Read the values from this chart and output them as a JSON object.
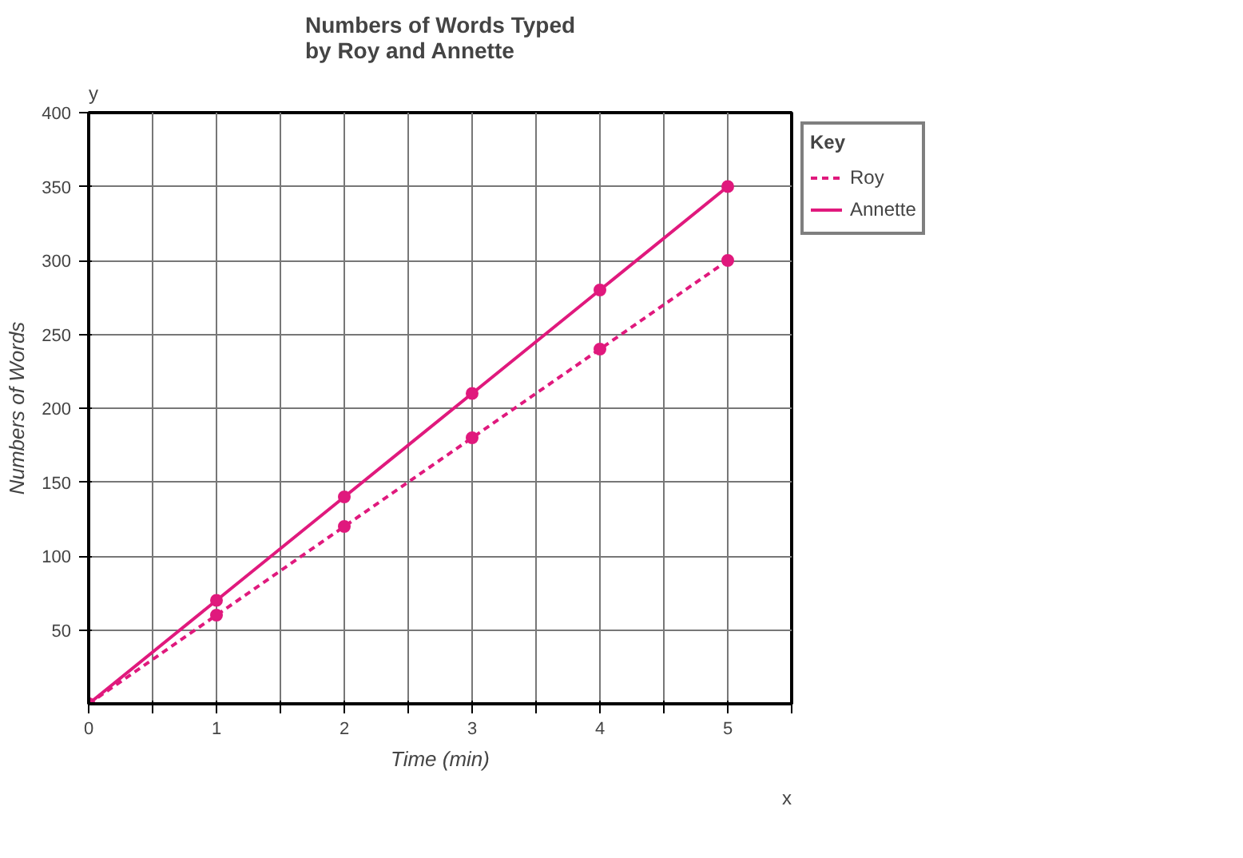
{
  "chart_data": {
    "type": "line",
    "title": "Numbers of Words Typed\nby Roy and  Annette",
    "xlabel": "Time (min)",
    "ylabel": "Numbers of Words",
    "legend_title": "Key",
    "x": [
      0,
      1,
      2,
      3,
      4,
      5
    ],
    "series": [
      {
        "name": "Roy",
        "color": "#e0197d",
        "values": [
          0,
          60,
          120,
          180,
          240,
          300
        ],
        "line_style": "dashed"
      },
      {
        "name": "Annette",
        "color": "#e0197d",
        "values": [
          0,
          70,
          140,
          210,
          280,
          350
        ],
        "line_style": "solid"
      }
    ],
    "xlim": [
      0,
      5.5
    ],
    "ylim": [
      0,
      400
    ],
    "xticks": [
      0,
      {
        "value": 0.5,
        "label": null
      },
      1,
      {
        "value": 1.5,
        "label": null
      },
      2,
      {
        "value": 2.5,
        "label": null
      },
      3,
      {
        "value": 3.5,
        "label": null
      },
      4,
      {
        "value": 4.5,
        "label": null
      },
      5,
      {
        "value": 5.5,
        "label": null
      }
    ],
    "yticks": [
      50,
      100,
      150,
      200,
      250,
      300,
      350,
      400
    ],
    "grid": true,
    "legend": "top right",
    "marker": "circle",
    "annotations": [
      "x",
      "y"
    ]
  }
}
